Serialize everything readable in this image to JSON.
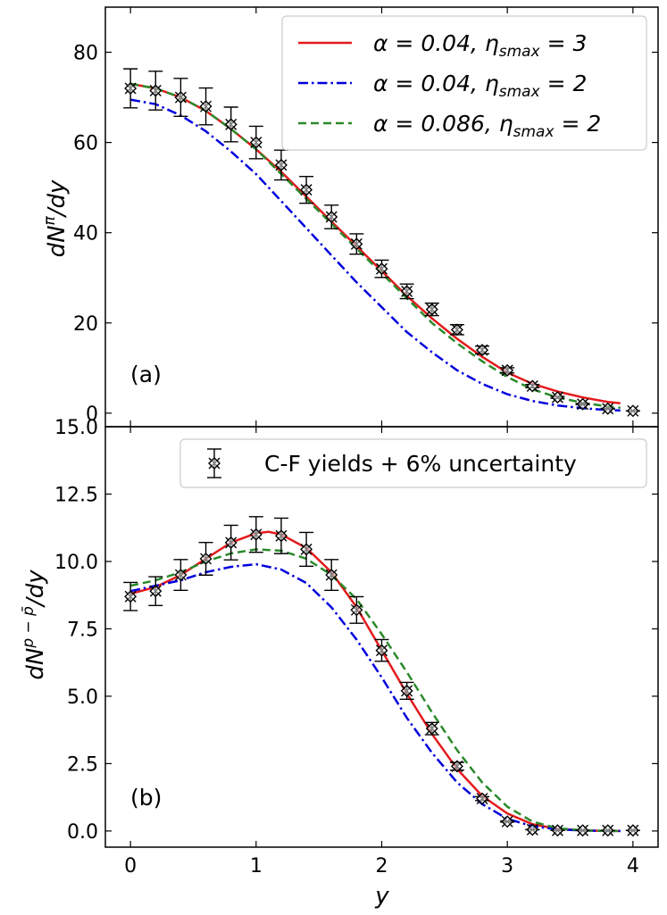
{
  "chart_data": [
    {
      "type": "line",
      "panel_label": "(a)",
      "ylabel": "dN^π/dy",
      "ylabel_main": "dN",
      "ylabel_sup": "π",
      "ylabel_tail": "/dy",
      "ylim": [
        -3,
        90
      ],
      "yticks": [
        0,
        20,
        40,
        60,
        80
      ],
      "ytick_labels": [
        "0",
        "20",
        "40",
        "60",
        "80"
      ],
      "legend_position": "top-right",
      "series": [
        {
          "name": "α = 0.04,  η_smax = 3",
          "legend_label": "α = 0.04,  η",
          "legend_sub": "smax",
          "legend_tail": " = 3",
          "color": "#e31a1c",
          "dash": "solid",
          "x": [
            0,
            0.2,
            0.4,
            0.6,
            0.8,
            1.0,
            1.2,
            1.4,
            1.6,
            1.8,
            2.0,
            2.2,
            2.4,
            2.6,
            2.8,
            3.0,
            3.2,
            3.4,
            3.6,
            3.8,
            3.9
          ],
          "y": [
            73.0,
            72.0,
            70.0,
            67.0,
            63.0,
            58.5,
            53.5,
            48.0,
            42.5,
            37.0,
            31.5,
            26.0,
            21.0,
            16.5,
            12.5,
            9.0,
            6.5,
            4.8,
            3.5,
            2.5,
            2.2
          ]
        },
        {
          "name": "α = 0.04,  η_smax = 2",
          "legend_label": "α = 0.04,  η",
          "legend_sub": "smax",
          "legend_tail": " = 2",
          "color": "#0000dd",
          "dash": "dashdot",
          "x": [
            0,
            0.2,
            0.4,
            0.6,
            0.8,
            1.0,
            1.2,
            1.4,
            1.6,
            1.8,
            2.0,
            2.2,
            2.4,
            2.6,
            2.8,
            3.0,
            3.2,
            3.4,
            3.6,
            3.8,
            3.9
          ],
          "y": [
            69.5,
            68.5,
            66.0,
            62.5,
            58.0,
            53.0,
            47.0,
            41.0,
            35.0,
            29.0,
            23.5,
            18.0,
            13.5,
            9.5,
            6.5,
            4.2,
            2.7,
            1.7,
            1.1,
            0.7,
            0.6
          ]
        },
        {
          "name": "α = 0.086, η_smax = 2",
          "legend_label": "α = 0.086, η",
          "legend_sub": "smax",
          "legend_tail": " = 2",
          "color": "#2a8a2a",
          "dash": "dashed",
          "x": [
            0,
            0.2,
            0.4,
            0.6,
            0.8,
            1.0,
            1.2,
            1.4,
            1.6,
            1.8,
            2.0,
            2.2,
            2.4,
            2.6,
            2.8,
            3.0,
            3.2,
            3.4,
            3.6,
            3.8,
            3.9
          ],
          "y": [
            73.0,
            72.0,
            70.0,
            67.0,
            63.0,
            58.5,
            53.0,
            47.5,
            42.0,
            36.5,
            31.0,
            25.5,
            20.0,
            15.5,
            11.5,
            8.0,
            5.3,
            3.5,
            2.3,
            1.5,
            1.2
          ]
        }
      ],
      "data_points": {
        "name": "C-F yields + 6% uncertainty",
        "x": [
          0,
          0.2,
          0.4,
          0.6,
          0.8,
          1.0,
          1.2,
          1.4,
          1.6,
          1.8,
          2.0,
          2.2,
          2.4,
          2.6,
          2.8,
          3.0,
          3.2,
          3.4,
          3.6,
          3.8,
          4.0
        ],
        "y": [
          72.0,
          71.5,
          70.0,
          68.0,
          64.0,
          60.0,
          55.0,
          49.5,
          43.5,
          37.5,
          32.0,
          27.0,
          23.0,
          18.5,
          14.0,
          9.5,
          6.0,
          3.5,
          2.0,
          1.0,
          0.5
        ],
        "yerr_percent": 6
      }
    },
    {
      "type": "line",
      "panel_label": "(b)",
      "ylabel": "dN^{p−p̄}/dy",
      "ylabel_main": "dN",
      "ylabel_sup": "p − p̄",
      "ylabel_tail": "/dy",
      "ylim": [
        -0.6,
        15.0
      ],
      "yticks": [
        0.0,
        2.5,
        5.0,
        7.5,
        10.0,
        12.5,
        15.0
      ],
      "ytick_labels": [
        "0.0",
        "2.5",
        "5.0",
        "7.5",
        "10.0",
        "12.5",
        "15.0"
      ],
      "xlabel": "y",
      "xlim": [
        -0.2,
        4.2
      ],
      "xticks": [
        0,
        1,
        2,
        3,
        4
      ],
      "xtick_labels": [
        "0",
        "1",
        "2",
        "3",
        "4"
      ],
      "legend_position": "top-right",
      "series": [
        {
          "name": "α = 0.04,  η_smax = 3",
          "color": "#e31a1c",
          "dash": "solid",
          "x": [
            0,
            0.2,
            0.4,
            0.6,
            0.8,
            1.0,
            1.1,
            1.2,
            1.4,
            1.6,
            1.8,
            2.0,
            2.2,
            2.4,
            2.6,
            2.8,
            3.0,
            3.2,
            3.4,
            3.6,
            3.8,
            3.9
          ],
          "y": [
            8.8,
            9.05,
            9.5,
            10.1,
            10.7,
            11.05,
            11.1,
            11.0,
            10.5,
            9.6,
            8.3,
            6.7,
            5.1,
            3.6,
            2.3,
            1.3,
            0.65,
            0.25,
            0.08,
            0.02,
            0.0,
            0.0
          ]
        },
        {
          "name": "α = 0.04,  η_smax = 2",
          "color": "#0000dd",
          "dash": "dashdot",
          "x": [
            0,
            0.2,
            0.4,
            0.6,
            0.8,
            1.0,
            1.2,
            1.4,
            1.6,
            1.8,
            2.0,
            2.2,
            2.4,
            2.6,
            2.8,
            3.0,
            3.2,
            3.4,
            3.6,
            3.8,
            3.9
          ],
          "y": [
            8.9,
            9.1,
            9.3,
            9.6,
            9.8,
            9.9,
            9.7,
            9.2,
            8.3,
            7.1,
            5.7,
            4.2,
            2.9,
            1.8,
            1.0,
            0.45,
            0.18,
            0.06,
            0.02,
            0.0,
            0.0
          ]
        },
        {
          "name": "α = 0.086, η_smax = 2",
          "color": "#2a8a2a",
          "dash": "dashed",
          "x": [
            0,
            0.2,
            0.4,
            0.6,
            0.8,
            1.0,
            1.2,
            1.4,
            1.6,
            1.8,
            2.0,
            2.2,
            2.4,
            2.6,
            2.8,
            3.0,
            3.2,
            3.4,
            3.6,
            3.8,
            3.9
          ],
          "y": [
            9.1,
            9.3,
            9.6,
            10.0,
            10.3,
            10.45,
            10.4,
            10.1,
            9.5,
            8.6,
            7.3,
            5.9,
            4.4,
            3.0,
            1.8,
            0.9,
            0.35,
            0.1,
            0.03,
            0.0,
            0.0
          ]
        }
      ],
      "data_points": {
        "name": "C-F yields + 6% uncertainty",
        "x": [
          0,
          0.2,
          0.4,
          0.6,
          0.8,
          1.0,
          1.2,
          1.4,
          1.6,
          1.8,
          2.0,
          2.2,
          2.4,
          2.6,
          2.8,
          3.0,
          3.2,
          3.4,
          3.6,
          3.8,
          4.0
        ],
        "y": [
          8.7,
          8.9,
          9.5,
          10.1,
          10.7,
          11.0,
          10.95,
          10.45,
          9.5,
          8.2,
          6.7,
          5.2,
          3.8,
          2.4,
          1.2,
          0.35,
          0.05,
          0.02,
          0.02,
          0.02,
          0.02
        ],
        "yerr_percent": 6
      },
      "legend_entry": "C-F yields + 6% uncertainty"
    }
  ]
}
